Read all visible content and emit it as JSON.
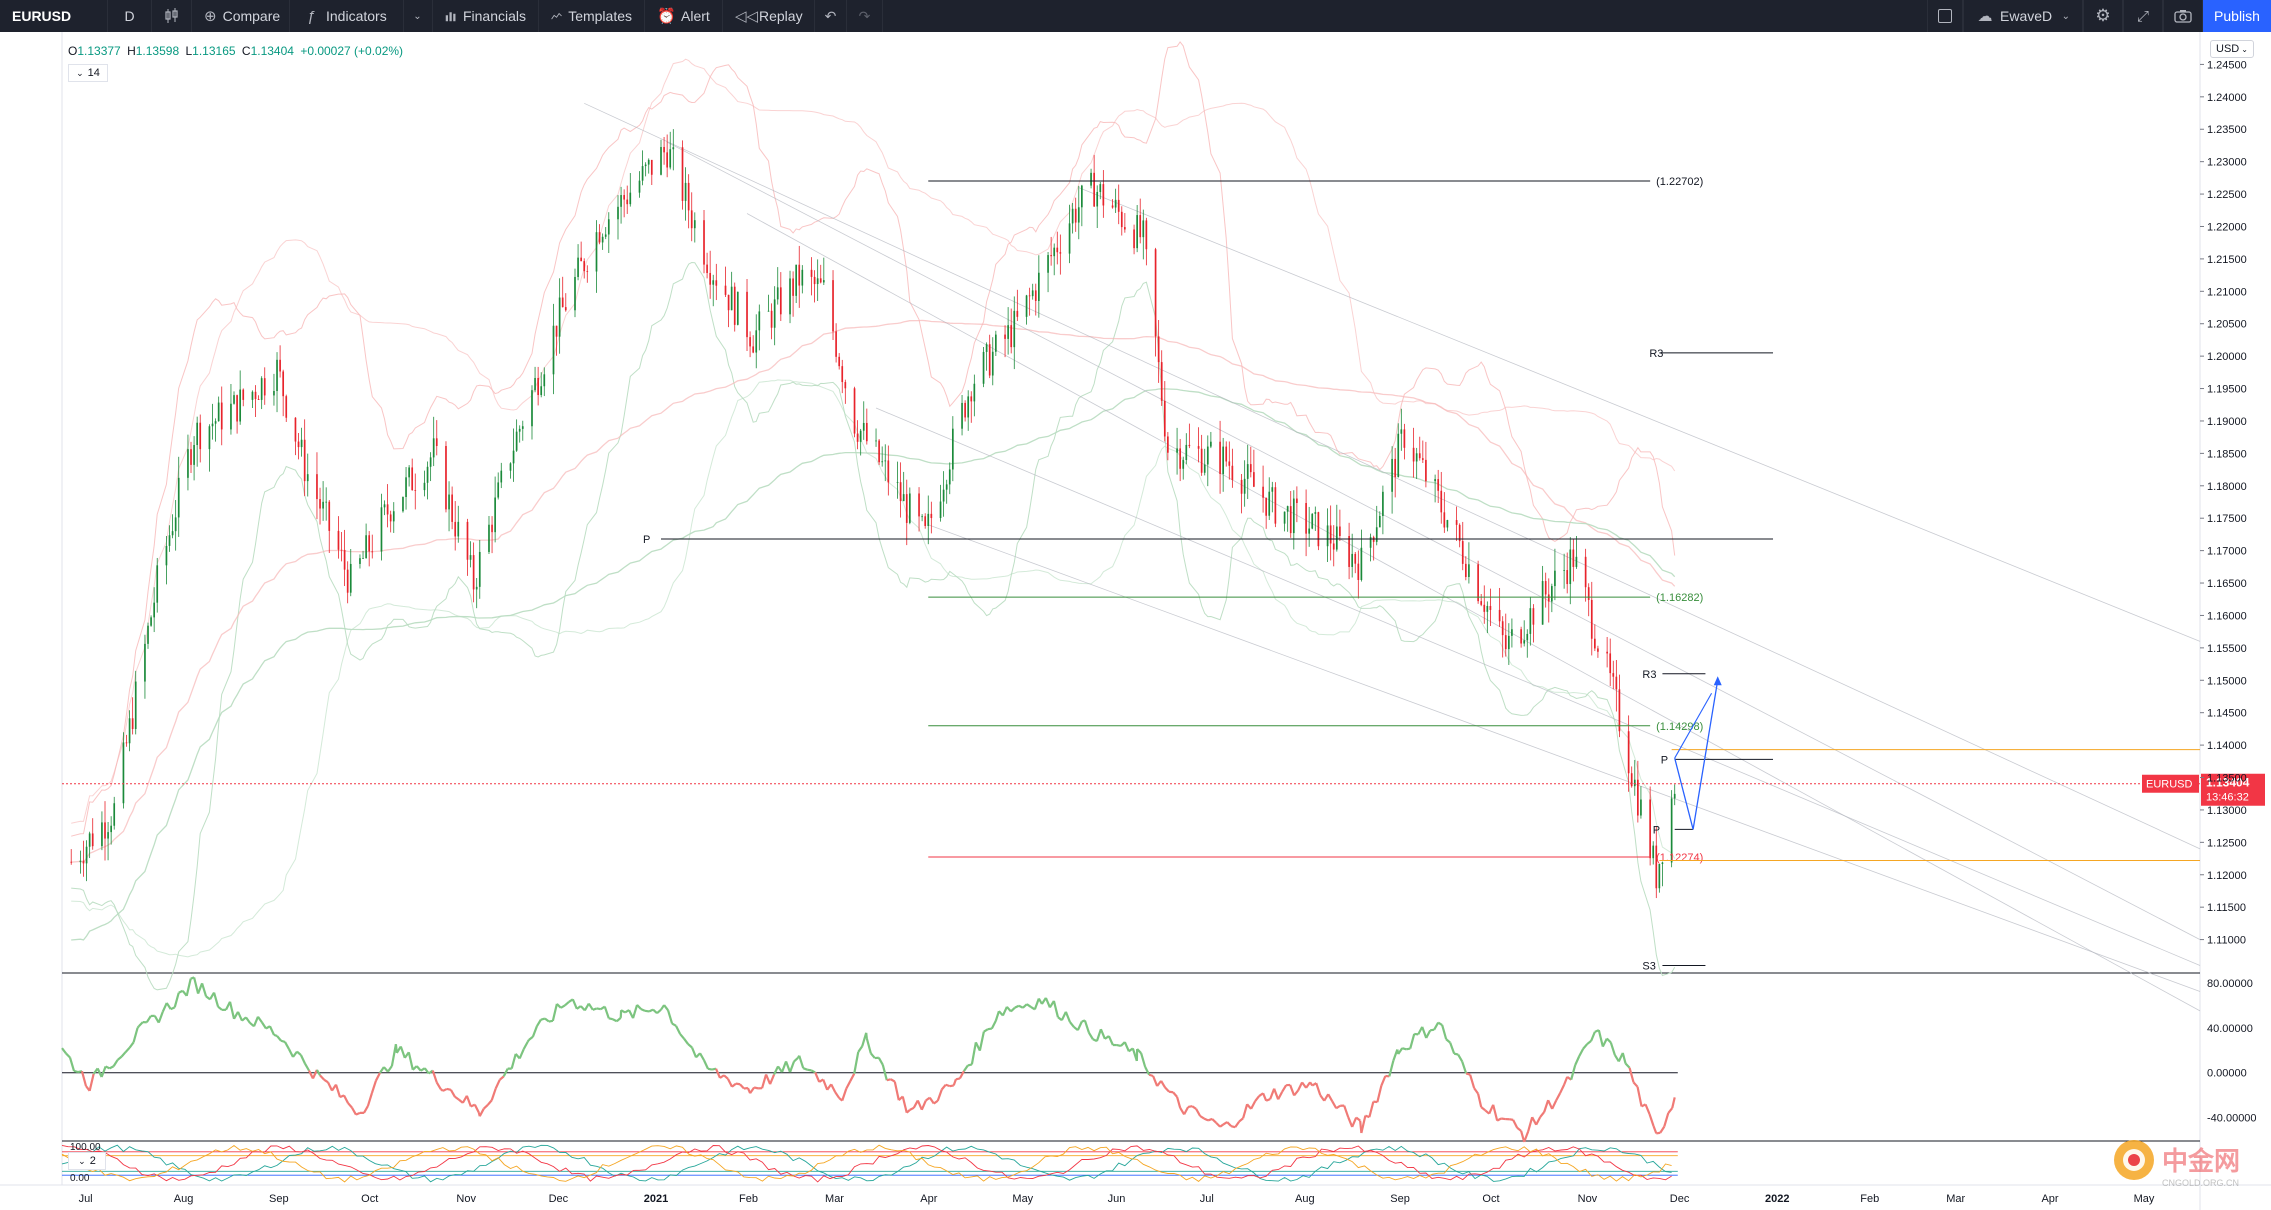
{
  "toolbar": {
    "symbol": "EURUSD",
    "interval": "D",
    "compare": "Compare",
    "indicators": "Indicators",
    "financials": "Financials",
    "templates": "Templates",
    "alert": "Alert",
    "replay": "Replay",
    "user": "EwaveD",
    "publish": "Publish",
    "icons": {
      "bars": "candles-icon",
      "compare": "plus-circle-icon",
      "indicators": "fx-icon",
      "financials": "bar-chart-icon",
      "templates": "templates-icon",
      "alert": "alarm-clock-icon",
      "replay": "replay-icon",
      "undo": "undo-icon",
      "redo": "redo-icon",
      "layout": "layout-icon",
      "cloud": "cloud-icon",
      "gear": "gear-icon",
      "fullscreen": "fullscreen-icon",
      "camera": "camera-icon"
    }
  },
  "legend": {
    "open_label": "O",
    "open": "1.13377",
    "high_label": "H",
    "high": "1.13598",
    "low_label": "L",
    "low": "1.13165",
    "close_label": "C",
    "close": "1.13404",
    "change": "+0.00027 (+0.02%)",
    "indicators_count": "14",
    "lower_indicators_count": "2"
  },
  "currency_select": "USD",
  "price_tag": {
    "symbol": "EURUSD",
    "price": "1.13404",
    "countdown": "13:46:32",
    "color": "#f23645"
  },
  "colors": {
    "bull": "#089981",
    "bear": "#f23645",
    "candle_up": "#1b8a3a",
    "candle_down": "#e8232b",
    "band": "#f7b6b6",
    "sma_green": "#b8dcc0",
    "channel": "#b2b5be",
    "fib_green": "#388e3c",
    "fib_red": "#f23645",
    "orange": "#f5a623",
    "projection": "#2962ff"
  },
  "chart_data": [
    {
      "type": "candlestick",
      "yaxis": {
        "range": [
          1.105,
          1.25
        ],
        "ticks": [
          "1.24500",
          "1.24000",
          "1.23500",
          "1.23000",
          "1.22500",
          "1.22000",
          "1.21500",
          "1.21000",
          "1.20500",
          "1.20000",
          "1.19500",
          "1.19000",
          "1.18500",
          "1.18000",
          "1.17500",
          "1.17000",
          "1.16500",
          "1.16000",
          "1.15500",
          "1.15000",
          "1.14500",
          "1.14000",
          "1.13500",
          "1.13000",
          "1.12500",
          "1.12000",
          "1.11500",
          "1.11000"
        ]
      },
      "xaxis": {
        "labels": [
          "Jul",
          "Aug",
          "Sep",
          "Oct",
          "Nov",
          "Dec",
          "2021",
          "Feb",
          "Mar",
          "Apr",
          "May",
          "Jun",
          "Jul",
          "Aug",
          "Sep",
          "Oct",
          "Nov",
          "Dec",
          "2022",
          "Feb",
          "Mar",
          "Apr",
          "May"
        ],
        "range": [
          "2020-06-23",
          "2022-05-20"
        ]
      },
      "price_path": [
        [
          "2020-06-26",
          1.122
        ],
        [
          "2020-07-10",
          1.13
        ],
        [
          "2020-07-24",
          1.165
        ],
        [
          "2020-08-05",
          1.188
        ],
        [
          "2020-08-18",
          1.192
        ],
        [
          "2020-09-01",
          1.198
        ],
        [
          "2020-09-10",
          1.183
        ],
        [
          "2020-09-25",
          1.165
        ],
        [
          "2020-10-08",
          1.177
        ],
        [
          "2020-10-22",
          1.185
        ],
        [
          "2020-11-04",
          1.165
        ],
        [
          "2020-11-16",
          1.185
        ],
        [
          "2020-12-01",
          1.205
        ],
        [
          "2020-12-15",
          1.22
        ],
        [
          "2021-01-06",
          1.232
        ],
        [
          "2021-01-20",
          1.214
        ],
        [
          "2021-02-03",
          1.203
        ],
        [
          "2021-02-18",
          1.212
        ],
        [
          "2021-02-26",
          1.21
        ],
        [
          "2021-03-08",
          1.19
        ],
        [
          "2021-03-31",
          1.172
        ],
        [
          "2021-04-15",
          1.196
        ],
        [
          "2021-04-30",
          1.205
        ],
        [
          "2021-05-18",
          1.222
        ],
        [
          "2021-05-25",
          1.226
        ],
        [
          "2021-06-10",
          1.218
        ],
        [
          "2021-06-18",
          1.186
        ],
        [
          "2021-07-07",
          1.184
        ],
        [
          "2021-07-22",
          1.177
        ],
        [
          "2021-08-10",
          1.172
        ],
        [
          "2021-08-20",
          1.168
        ],
        [
          "2021-09-03",
          1.188
        ],
        [
          "2021-09-20",
          1.172
        ],
        [
          "2021-10-06",
          1.155
        ],
        [
          "2021-10-20",
          1.164
        ],
        [
          "2021-10-28",
          1.169
        ],
        [
          "2021-11-10",
          1.148
        ],
        [
          "2021-11-24",
          1.12
        ],
        [
          "2021-11-30",
          1.134
        ]
      ],
      "horizontal_levels": [
        {
          "label": "(1.22702)",
          "value": 1.22702,
          "color": "#131722"
        },
        {
          "label": "R3",
          "value": 1.2005,
          "color": "#131722"
        },
        {
          "label": "P",
          "value": 1.1718,
          "color": "#131722"
        },
        {
          "label": "(1.16282)",
          "value": 1.16282,
          "color": "#388e3c"
        },
        {
          "label": "R3",
          "value": 1.151,
          "color": "#131722"
        },
        {
          "label": "(1.14298)",
          "value": 1.14298,
          "color": "#388e3c"
        },
        {
          "label": "P",
          "value": 1.1378,
          "color": "#131722"
        },
        {
          "label": "P",
          "value": 1.127,
          "color": "#131722"
        },
        {
          "label": "(1.12274)",
          "value": 1.12274,
          "color": "#f23645"
        },
        {
          "label": "S3",
          "value": 1.106,
          "color": "#131722"
        }
      ],
      "orange_levels": [
        1.1393,
        1.1222
      ],
      "current_price": 1.13404
    },
    {
      "type": "line",
      "name": "",
      "yaxis": {
        "range": [
          -60,
          88
        ],
        "ticks": [
          "80.00000",
          "40.00000",
          "0.00000",
          "-40.00000"
        ]
      },
      "zero_line": 0,
      "values": [
        [
          "2020-06-23",
          20
        ],
        [
          "2020-07-02",
          -10
        ],
        [
          "2020-07-18",
          35
        ],
        [
          "2020-08-05",
          80
        ],
        [
          "2020-08-18",
          55
        ],
        [
          "2020-09-01",
          35
        ],
        [
          "2020-09-15",
          -5
        ],
        [
          "2020-09-28",
          -35
        ],
        [
          "2020-10-10",
          20
        ],
        [
          "2020-10-25",
          -10
        ],
        [
          "2020-11-06",
          -35
        ],
        [
          "2020-11-22",
          30
        ],
        [
          "2020-12-05",
          65
        ],
        [
          "2020-12-22",
          50
        ],
        [
          "2021-01-05",
          60
        ],
        [
          "2021-01-18",
          5
        ],
        [
          "2021-02-02",
          -15
        ],
        [
          "2021-02-18",
          10
        ],
        [
          "2021-03-04",
          -20
        ],
        [
          "2021-03-12",
          30
        ],
        [
          "2021-03-26",
          -35
        ],
        [
          "2021-04-10",
          -10
        ],
        [
          "2021-04-24",
          55
        ],
        [
          "2021-05-08",
          65
        ],
        [
          "2021-05-22",
          40
        ],
        [
          "2021-06-08",
          15
        ],
        [
          "2021-06-22",
          -30
        ],
        [
          "2021-07-06",
          -50
        ],
        [
          "2021-07-20",
          -20
        ],
        [
          "2021-08-04",
          -10
        ],
        [
          "2021-08-20",
          -50
        ],
        [
          "2021-09-01",
          20
        ],
        [
          "2021-09-14",
          45
        ],
        [
          "2021-09-28",
          -25
        ],
        [
          "2021-10-12",
          -55
        ],
        [
          "2021-10-26",
          -10
        ],
        [
          "2021-11-04",
          35
        ],
        [
          "2021-11-14",
          10
        ],
        [
          "2021-11-24",
          -58
        ],
        [
          "2021-11-30",
          -22
        ]
      ]
    },
    {
      "type": "line",
      "name": "",
      "yaxis": {
        "range": [
          0,
          100
        ],
        "ticks": [
          "100.00",
          "0.00"
        ]
      }
    }
  ]
}
